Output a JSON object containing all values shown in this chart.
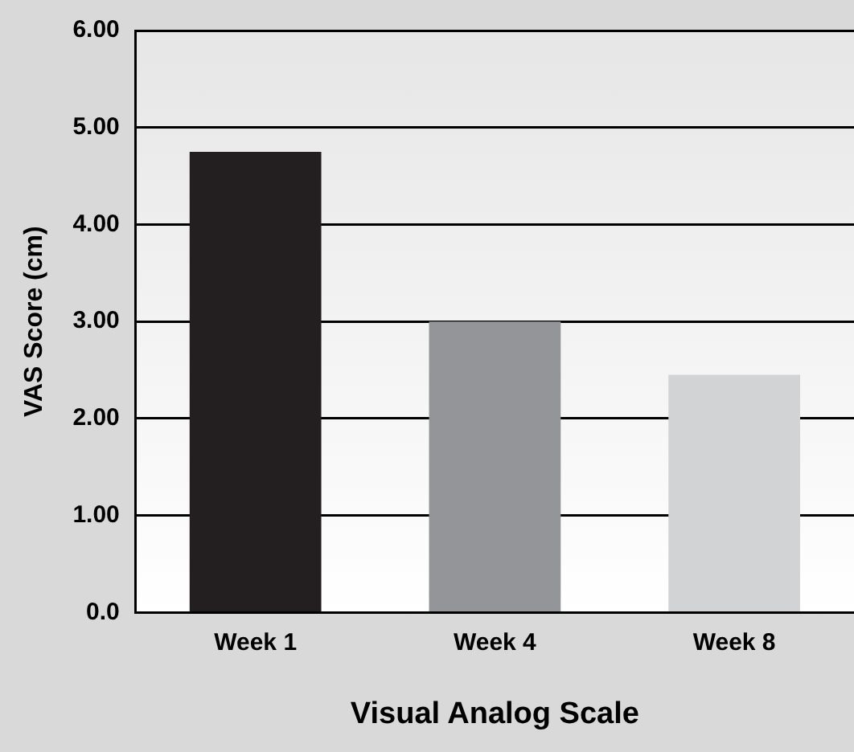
{
  "chart_data": {
    "type": "bar",
    "xlabel": "Visual Analog Scale",
    "ylabel": "VAS Score (cm)",
    "categories": [
      "Week 1",
      "Week 4",
      "Week 8"
    ],
    "values": [
      4.75,
      3.0,
      2.45
    ],
    "colors": [
      "#231f20",
      "#939598",
      "#d1d3d4"
    ],
    "ylim": [
      0,
      6
    ],
    "yticks": [
      {
        "value": 0,
        "label": "0.0"
      },
      {
        "value": 1,
        "label": "1.00"
      },
      {
        "value": 2,
        "label": "2.00"
      },
      {
        "value": 3,
        "label": "3.00"
      },
      {
        "value": 4,
        "label": "4.00"
      },
      {
        "value": 5,
        "label": "5.00"
      },
      {
        "value": 6,
        "label": "6.00"
      }
    ],
    "grid": "y"
  }
}
